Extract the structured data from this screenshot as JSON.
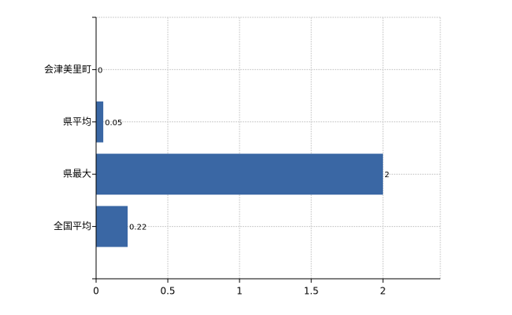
{
  "chart_data": {
    "type": "bar",
    "orientation": "horizontal",
    "categories": [
      "会津美里町",
      "県平均",
      "県最大",
      "全国平均"
    ],
    "values": [
      0,
      0.05,
      2,
      0.22
    ],
    "color": "#3a67a4",
    "xlim": [
      0,
      2.4
    ],
    "xticks": [
      0,
      0.5,
      1,
      1.5,
      2
    ],
    "grid": true
  }
}
